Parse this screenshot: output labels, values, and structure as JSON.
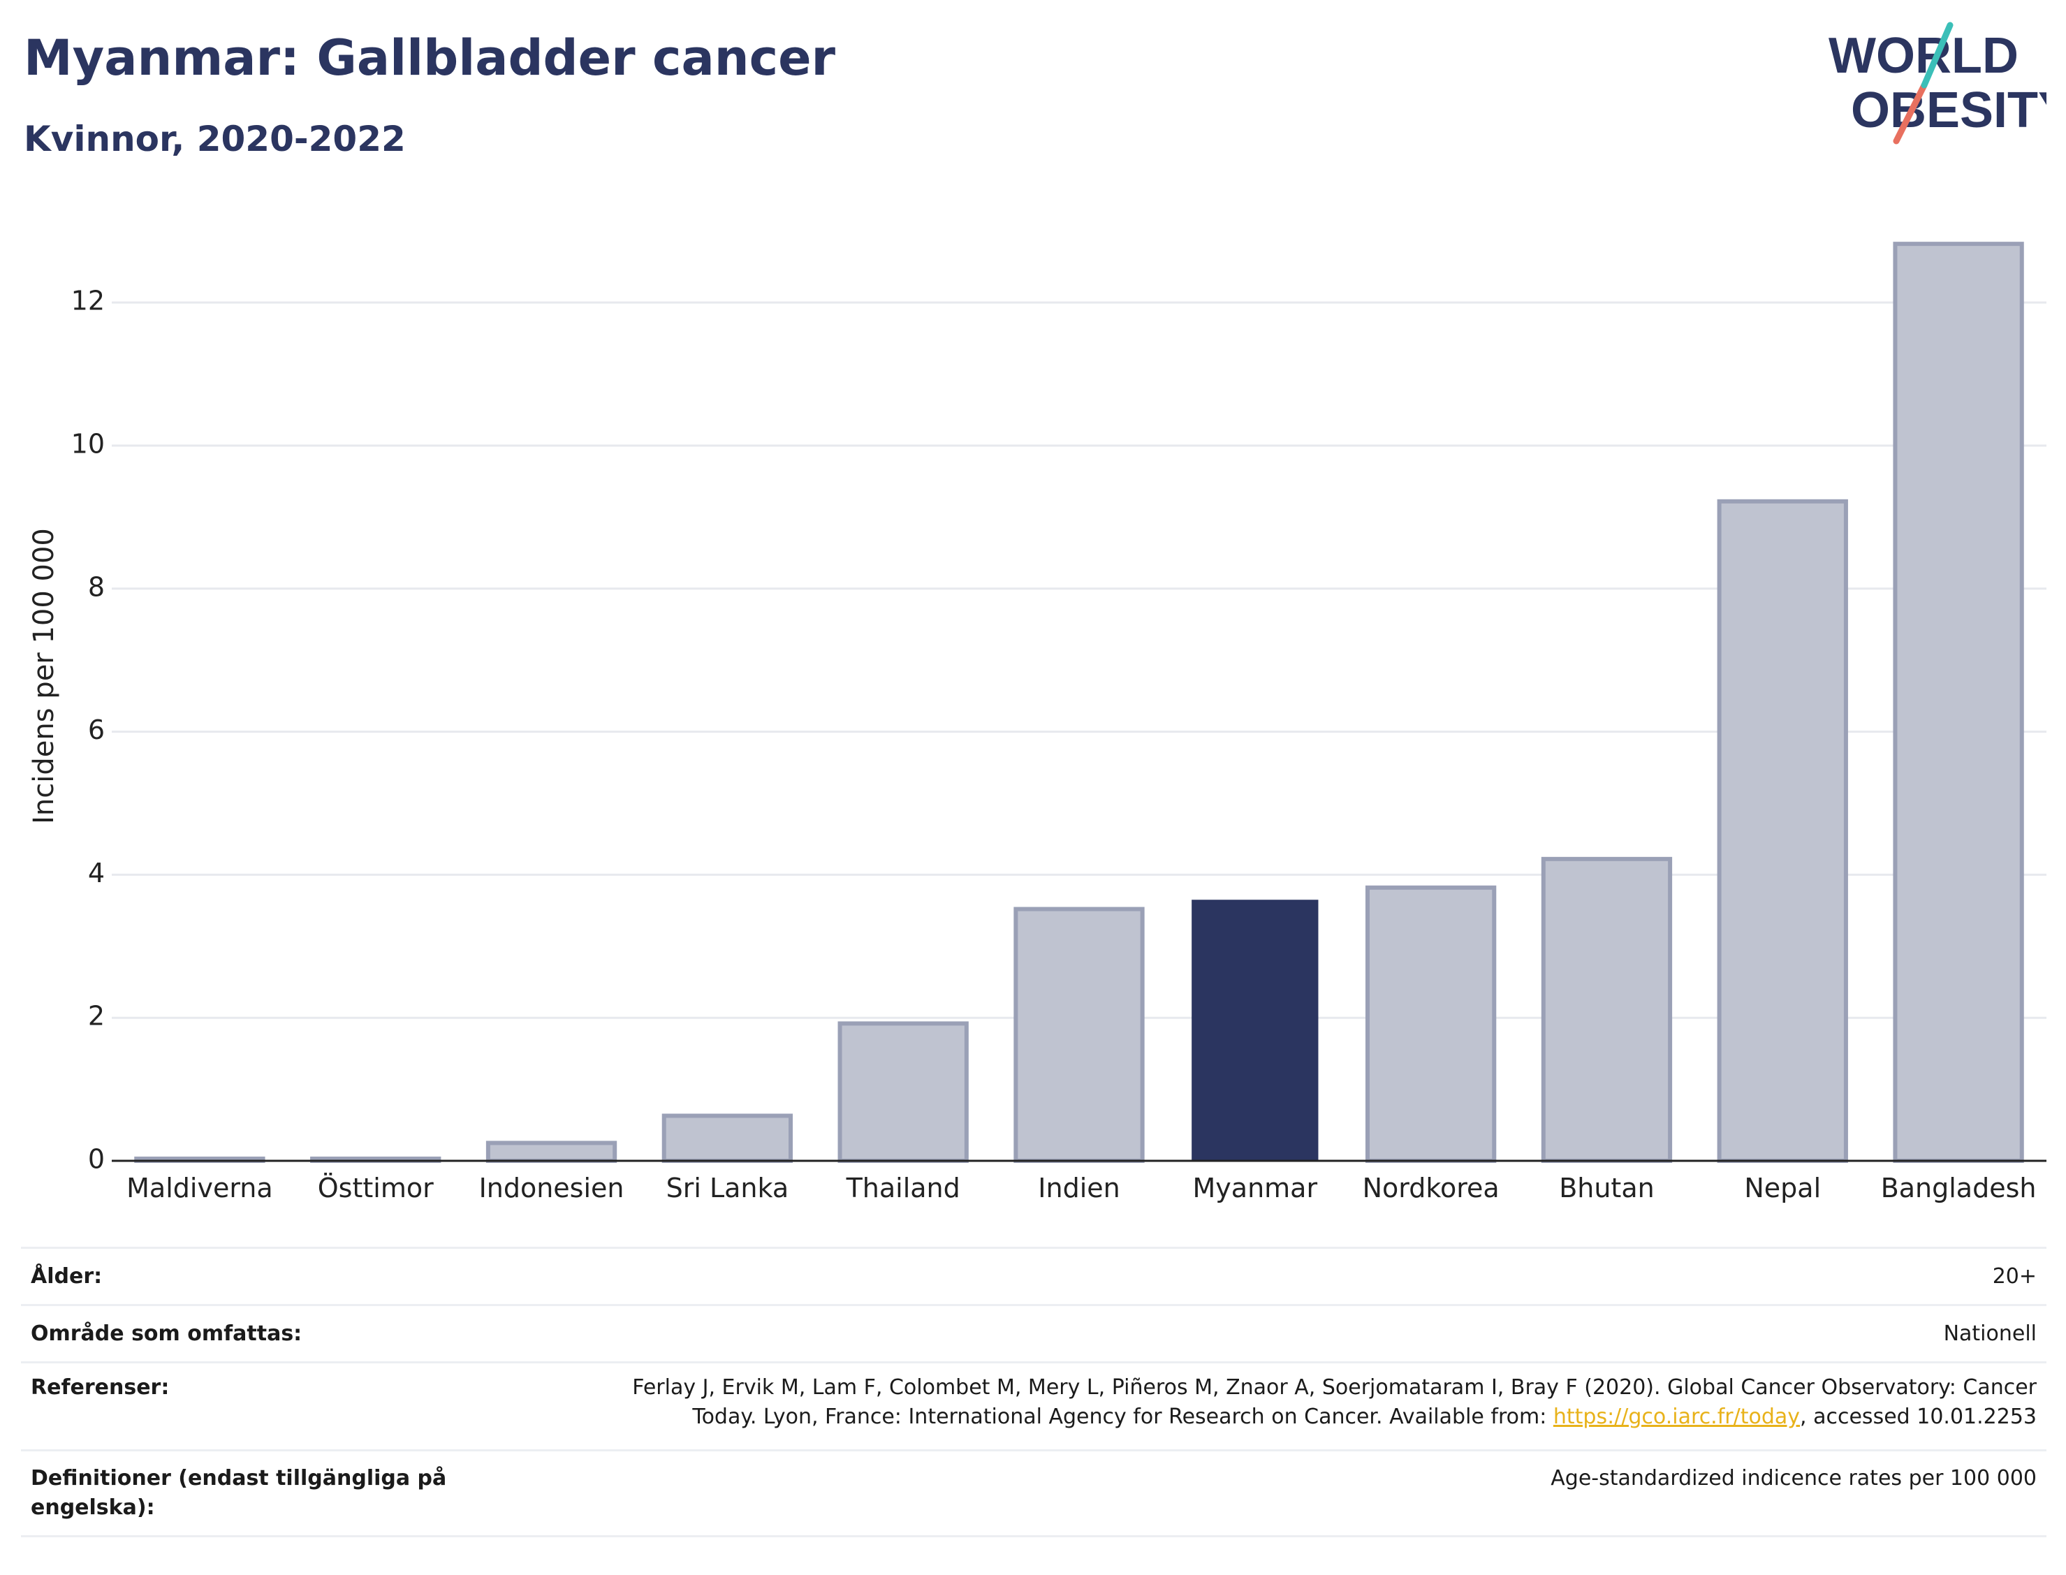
{
  "header": {
    "title": "Myanmar: Gallbladder cancer",
    "subtitle": "Kvinnor, 2020-2022"
  },
  "logo": {
    "line1": "WORLD",
    "line2": "OBESITY"
  },
  "colors": {
    "highlight": "#2b3560",
    "bar": "#bfc3d0",
    "bar_border": "#9aa0b6",
    "accent_teal": "#3bbfb8",
    "accent_coral": "#e8705f",
    "link": "#e8b21a"
  },
  "chart_data": {
    "type": "bar",
    "title": "Myanmar: Gallbladder cancer",
    "subtitle": "Kvinnor, 2020-2022",
    "xlabel": "",
    "ylabel": "Incidens per 100 000",
    "categories": [
      "Maldiverna",
      "Östtimor",
      "Indonesien",
      "Sri Lanka",
      "Thailand",
      "Indien",
      "Myanmar",
      "Nordkorea",
      "Bhutan",
      "Nepal",
      "Bangladesh"
    ],
    "values": [
      0.03,
      0.03,
      0.25,
      0.63,
      1.92,
      3.52,
      3.65,
      3.82,
      4.22,
      9.22,
      12.82
    ],
    "highlight": "Myanmar",
    "ylim": [
      0,
      13.3
    ],
    "yticks": [
      0,
      2,
      4,
      6,
      8,
      10,
      12
    ],
    "grid": true
  },
  "meta": {
    "rows": [
      {
        "key": "Ålder:",
        "value": "20+"
      },
      {
        "key": "Område som omfattas:",
        "value": "Nationell"
      },
      {
        "key": "Referenser:",
        "value_line1": "Ferlay J, Ervik M, Lam F, Colombet M, Mery L, Piñeros M, Znaor A, Soerjomataram I, Bray F (2020). Global Cancer Observatory: Cancer",
        "value_line2_pre": "Today. Lyon, France: International Agency for Research on Cancer. Available from: ",
        "link": "https://gco.iarc.fr/today",
        "value_line2_post": ", accessed 10.01.2253"
      },
      {
        "key": "Definitioner (endast tillgängliga på engelska):",
        "value": "Age-standardized indicence rates per 100 000"
      }
    ]
  }
}
